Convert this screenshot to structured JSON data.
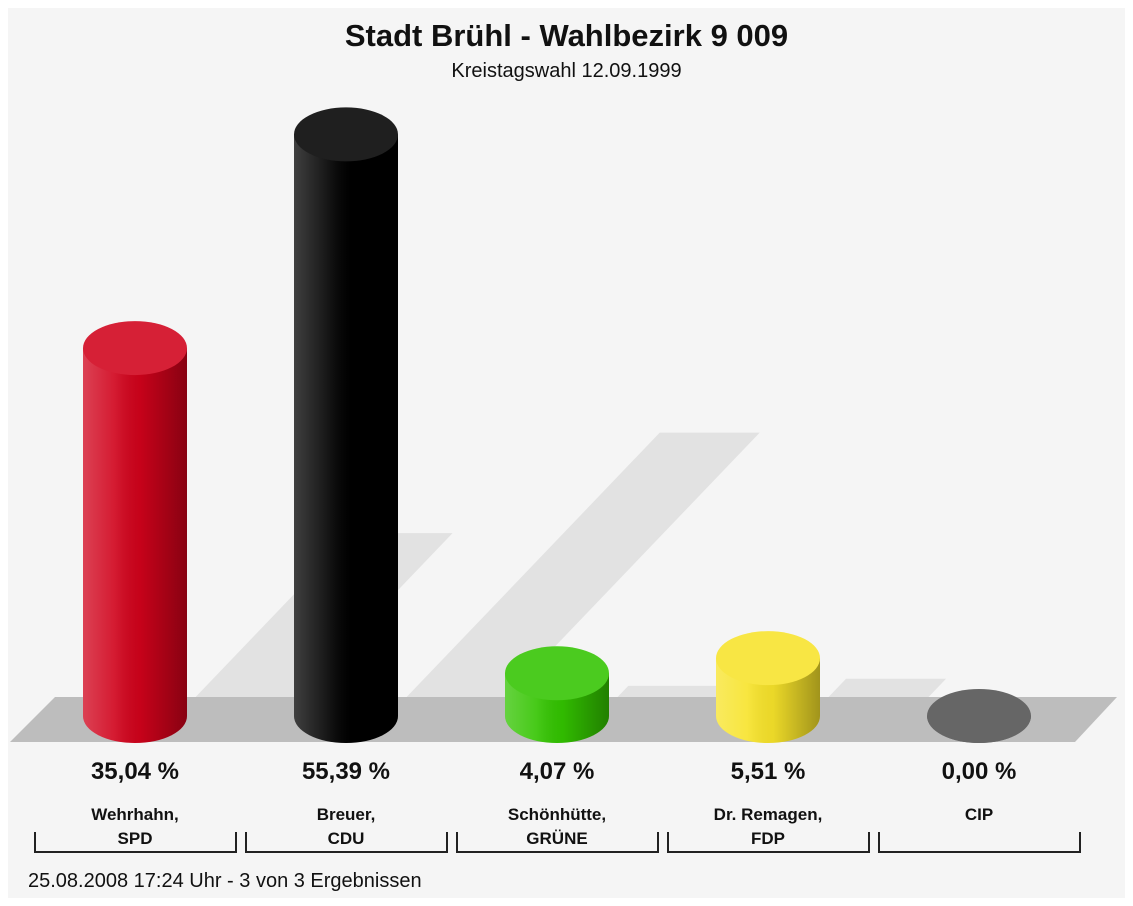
{
  "chart_data": {
    "type": "bar",
    "title": "Stadt Brühl - Wahlbezirk 9 009",
    "subtitle": "Kreistagswahl 12.09.1999",
    "categories": [
      "Wehrhahn,\nSPD",
      "Breuer,\nCDU",
      "Schönhütte,\nGRÜNE",
      "Dr. Remagen,\nFDP",
      "CIP"
    ],
    "values": [
      35.04,
      55.39,
      4.07,
      5.51,
      0.0
    ],
    "value_labels": [
      "35,04 %",
      "55,39 %",
      "4,07 %",
      "5,51 %",
      "0,00 %"
    ],
    "colors": [
      "#d0021b",
      "#000000",
      "#33c400",
      "#f7e32a",
      "#666666"
    ],
    "footer": "25.08.2008 17:24 Uhr - 3 von 3 Ergebnissen"
  }
}
